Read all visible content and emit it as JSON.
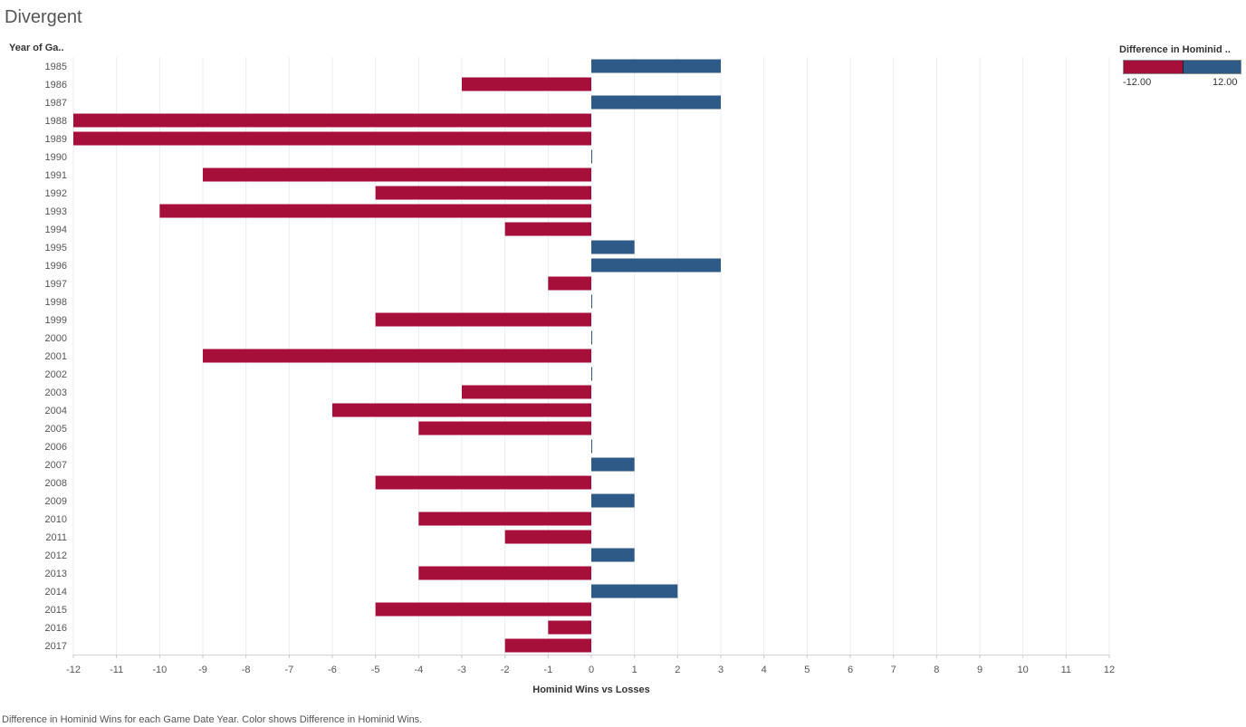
{
  "title": "Divergent",
  "row_header": "Year of Ga..",
  "legend": {
    "title": "Difference in Hominid ..",
    "min_label": "-12.00",
    "max_label": "12.00",
    "neg_color": "#a50f3a",
    "pos_color": "#2e5a88"
  },
  "caption": "Difference in Hominid Wins for each Game Date Year.  Color shows Difference in Hominid Wins.",
  "chart_data": {
    "type": "bar",
    "orientation": "horizontal",
    "xlabel": "Hominid Wins vs Losses",
    "ylabel": "Year of Ga..",
    "xlim": [
      -12,
      12
    ],
    "xticks": [
      -12,
      -11,
      -10,
      -9,
      -8,
      -7,
      -6,
      -5,
      -4,
      -3,
      -2,
      -1,
      0,
      1,
      2,
      3,
      4,
      5,
      6,
      7,
      8,
      9,
      10,
      11,
      12
    ],
    "grid": true,
    "legend_position": "top-right",
    "categories": [
      "1985",
      "1986",
      "1987",
      "1988",
      "1989",
      "1990",
      "1991",
      "1992",
      "1993",
      "1994",
      "1995",
      "1996",
      "1997",
      "1998",
      "1999",
      "2000",
      "2001",
      "2002",
      "2003",
      "2004",
      "2005",
      "2006",
      "2007",
      "2008",
      "2009",
      "2010",
      "2011",
      "2012",
      "2013",
      "2014",
      "2015",
      "2016",
      "2017"
    ],
    "values": [
      3,
      -3,
      3,
      -12,
      -12,
      0,
      -9,
      -5,
      -10,
      -2,
      1,
      3,
      -1,
      0,
      -5,
      0,
      -9,
      0,
      -3,
      -6,
      -4,
      0,
      1,
      -5,
      1,
      -4,
      -2,
      1,
      -4,
      2,
      -5,
      -1,
      -2
    ]
  }
}
